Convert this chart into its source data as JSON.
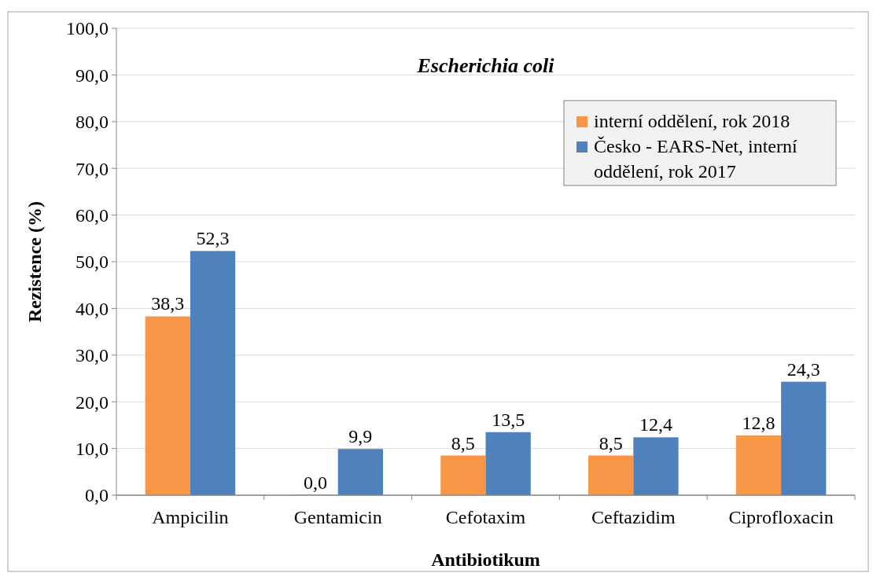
{
  "chart_data": {
    "type": "bar",
    "title": "Escherichia coli",
    "xlabel": "Antibiotikum",
    "ylabel": "Rezistence (%)",
    "categories": [
      "Ampicilin",
      "Gentamicin",
      "Cefotaxim",
      "Ceftazidim",
      "Ciprofloxacin"
    ],
    "series": [
      {
        "name": "interní oddělení, rok 2018",
        "color": "#f79646",
        "values": [
          38.3,
          0.0,
          8.5,
          8.5,
          12.8
        ],
        "value_labels": [
          "38,3",
          "0,0",
          "8,5",
          "8,5",
          "12,8"
        ]
      },
      {
        "name": "Česko - EARS-Net, interní oddělení, rok 2017",
        "color": "#4f81bd",
        "values": [
          52.3,
          9.9,
          13.5,
          12.4,
          24.3
        ],
        "value_labels": [
          "52,3",
          "9,9",
          "13,5",
          "12,4",
          "24,3"
        ]
      }
    ],
    "ylim": [
      0,
      100
    ],
    "yticks": [
      {
        "value": 0,
        "label": "0,0"
      },
      {
        "value": 10,
        "label": "10,0"
      },
      {
        "value": 20,
        "label": "20,0"
      },
      {
        "value": 30,
        "label": "30,0"
      },
      {
        "value": 40,
        "label": "40,0"
      },
      {
        "value": 50,
        "label": "50,0"
      },
      {
        "value": 60,
        "label": "60,0"
      },
      {
        "value": 70,
        "label": "70,0"
      },
      {
        "value": 80,
        "label": "80,0"
      },
      {
        "value": 90,
        "label": "90,0"
      },
      {
        "value": 100,
        "label": "100,0"
      }
    ],
    "grid": "y",
    "legend": "top right"
  }
}
